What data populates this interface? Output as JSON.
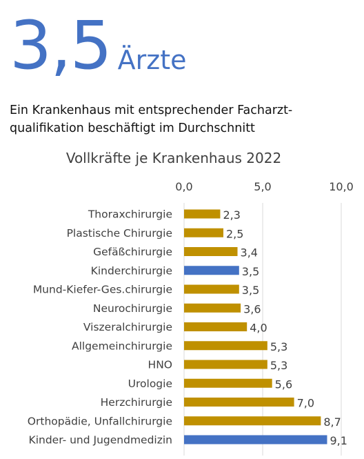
{
  "headline": {
    "value": "3,5",
    "unit": "Ärzte"
  },
  "subtitle": "Ein Krankenhaus mit entsprechender Facharzt-qualifikation beschäftigt im Durchschnitt",
  "colors": {
    "accent": "#4472c4",
    "bar": "#bf9000",
    "grid": "#d9d9d9",
    "text": "#404040"
  },
  "chart_data": {
    "type": "bar",
    "orientation": "horizontal",
    "title": "Vollkräfte je Krankenhaus 2022",
    "xlim": [
      0,
      10
    ],
    "xticks": [
      "0,0",
      "5,0",
      "10,0"
    ],
    "xtick_values": [
      0,
      5,
      10
    ],
    "grid": true,
    "categories": [
      "Thoraxchirurgie",
      "Plastische Chirurgie",
      "Gefäßchirurgie",
      "Kinderchirurgie",
      "Mund-Kiefer-Ges.chirurgie",
      "Neurochirurgie",
      "Viszeralchirurgie",
      "Allgemeinchirurgie",
      "HNO",
      "Urologie",
      "Herzchirurgie",
      "Orthopädie, Unfallchirurgie",
      "Kinder- und Jugendmedizin"
    ],
    "values": [
      2.3,
      2.5,
      3.4,
      3.5,
      3.5,
      3.6,
      4.0,
      5.3,
      5.3,
      5.6,
      7.0,
      8.7,
      9.1
    ],
    "labels": [
      "2,3",
      "2,5",
      "3,4",
      "3,5",
      "3,5",
      "3,6",
      "4,0",
      "5,3",
      "5,3",
      "5,6",
      "7,0",
      "8,7",
      "9,1"
    ],
    "highlighted": [
      "Kinderchirurgie",
      "Kinder- und Jugendmedizin"
    ]
  }
}
